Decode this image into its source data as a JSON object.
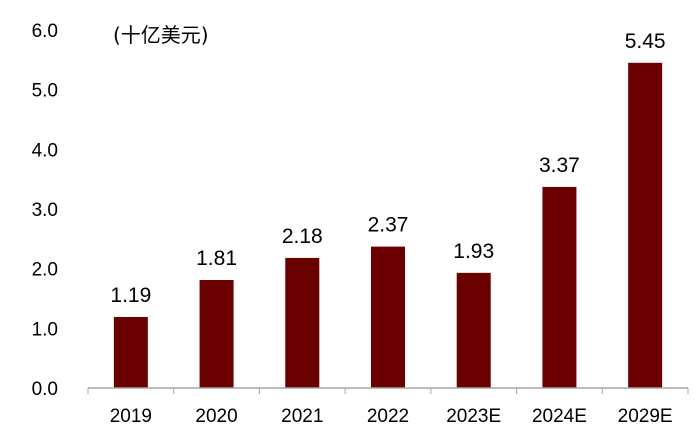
{
  "chart_data": {
    "type": "bar",
    "unit_label": "(十亿美元)",
    "title": "",
    "xlabel": "",
    "ylabel": "",
    "categories": [
      "2019",
      "2020",
      "2021",
      "2022",
      "2023E",
      "2024E",
      "2029E"
    ],
    "values": [
      1.19,
      1.81,
      2.18,
      2.37,
      1.93,
      3.37,
      5.45
    ],
    "data_labels": [
      "1.19",
      "1.81",
      "2.18",
      "2.37",
      "1.93",
      "3.37",
      "5.45"
    ],
    "yticks": [
      "0.0",
      "1.0",
      "2.0",
      "3.0",
      "4.0",
      "5.0",
      "6.0"
    ],
    "ylim": [
      0,
      6
    ],
    "grid": false,
    "legend": "none",
    "colors": {
      "bar": "#6b0000",
      "axis": "#a6a6a6",
      "text": "#000000"
    }
  }
}
